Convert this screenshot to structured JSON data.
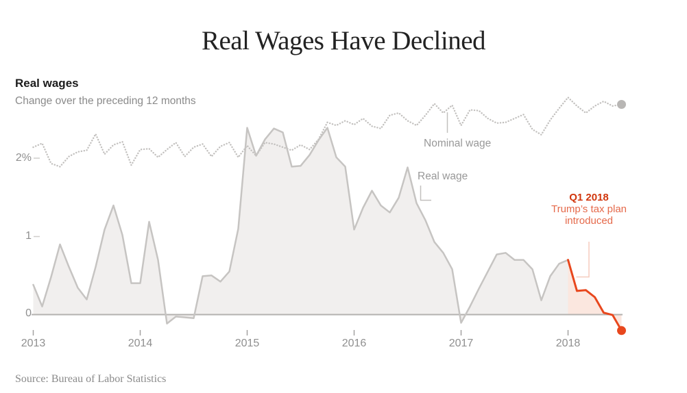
{
  "page": {
    "title": "Real Wages Have Declined",
    "source": "Source: Bureau of Labor Statistics"
  },
  "chart_data": {
    "type": "line",
    "title": "Real wages",
    "subtitle": "Change over the preceding 12 months",
    "unit": "percent",
    "x_tick_labels": [
      "2013",
      "2014",
      "2015",
      "2016",
      "2017",
      "2018"
    ],
    "y_tick_labels": [
      "2%",
      "1",
      "0"
    ],
    "y_tick_values": [
      2,
      1,
      0
    ],
    "ylim": [
      -0.4,
      3.0
    ],
    "grid": "off",
    "legend_position": "inline-annotations",
    "months": [
      "2013-01",
      "2013-02",
      "2013-03",
      "2013-04",
      "2013-05",
      "2013-06",
      "2013-07",
      "2013-08",
      "2013-09",
      "2013-10",
      "2013-11",
      "2013-12",
      "2014-01",
      "2014-02",
      "2014-03",
      "2014-04",
      "2014-05",
      "2014-06",
      "2014-07",
      "2014-08",
      "2014-09",
      "2014-10",
      "2014-11",
      "2014-12",
      "2015-01",
      "2015-02",
      "2015-03",
      "2015-04",
      "2015-05",
      "2015-06",
      "2015-07",
      "2015-08",
      "2015-09",
      "2015-10",
      "2015-11",
      "2015-12",
      "2016-01",
      "2016-02",
      "2016-03",
      "2016-04",
      "2016-05",
      "2016-06",
      "2016-07",
      "2016-08",
      "2016-09",
      "2016-10",
      "2016-11",
      "2016-12",
      "2017-01",
      "2017-02",
      "2017-03",
      "2017-04",
      "2017-05",
      "2017-06",
      "2017-07",
      "2017-08",
      "2017-09",
      "2017-10",
      "2017-11",
      "2017-12",
      "2018-01",
      "2018-02",
      "2018-03",
      "2018-04",
      "2018-05",
      "2018-06",
      "2018-07"
    ],
    "series": [
      {
        "name": "Nominal wage",
        "style": "dotted",
        "start_index": 0,
        "end_dot": true,
        "values": [
          2.15,
          2.2,
          1.94,
          1.9,
          2.03,
          2.09,
          2.11,
          2.32,
          2.06,
          2.18,
          2.22,
          1.92,
          2.12,
          2.13,
          2.02,
          2.12,
          2.21,
          2.03,
          2.15,
          2.19,
          2.03,
          2.16,
          2.21,
          2.02,
          2.17,
          2.04,
          2.21,
          2.19,
          2.15,
          2.11,
          2.18,
          2.12,
          2.25,
          2.47,
          2.43,
          2.49,
          2.44,
          2.52,
          2.42,
          2.39,
          2.56,
          2.59,
          2.49,
          2.43,
          2.56,
          2.71,
          2.59,
          2.69,
          2.43,
          2.63,
          2.62,
          2.52,
          2.46,
          2.47,
          2.52,
          2.57,
          2.38,
          2.31,
          2.5,
          2.65,
          2.79,
          2.68,
          2.59,
          2.68,
          2.74,
          2.68,
          2.7
        ]
      },
      {
        "name": "Real wage",
        "style": "area",
        "start_index": 0,
        "end_dot": false,
        "values": [
          0.38,
          0.1,
          0.48,
          0.9,
          0.61,
          0.34,
          0.19,
          0.61,
          1.09,
          1.4,
          1.02,
          0.4,
          0.4,
          1.19,
          0.7,
          -0.12,
          -0.03,
          -0.04,
          -0.05,
          0.49,
          0.5,
          0.42,
          0.55,
          1.1,
          2.4,
          2.04,
          2.25,
          2.39,
          2.34,
          1.9,
          1.91,
          2.05,
          2.24,
          2.4,
          2.02,
          1.9,
          1.09,
          1.37,
          1.59,
          1.4,
          1.31,
          1.5,
          1.89,
          1.43,
          1.21,
          0.93,
          0.79,
          0.58,
          -0.11,
          0.1,
          0.33,
          0.55,
          0.77,
          0.79,
          0.7,
          0.7,
          0.58,
          0.18,
          0.49,
          0.65,
          0.7
        ]
      },
      {
        "name": "Real wage since Q1 2018",
        "style": "area",
        "start_index": 60,
        "end_dot": true,
        "values": [
          0.7,
          0.3,
          0.31,
          0.22,
          0.02,
          -0.01,
          -0.21
        ]
      }
    ],
    "annotations": {
      "nominal_label": "Nominal wage",
      "real_label": "Real wage",
      "event_title": "Q1 2018",
      "event_line1": "Trump’s tax plan",
      "event_line2": "introduced"
    },
    "colors": {
      "nominal_line": "#c2c0be",
      "nominal_dot": "#b8b6b4",
      "real_line": "#c6c4c2",
      "real_fill": "#f1efee",
      "recent_line": "#e8471d",
      "recent_fill": "#fbe7df",
      "event_title_color": "#d1360d",
      "event_text_color": "#e5694a"
    }
  }
}
